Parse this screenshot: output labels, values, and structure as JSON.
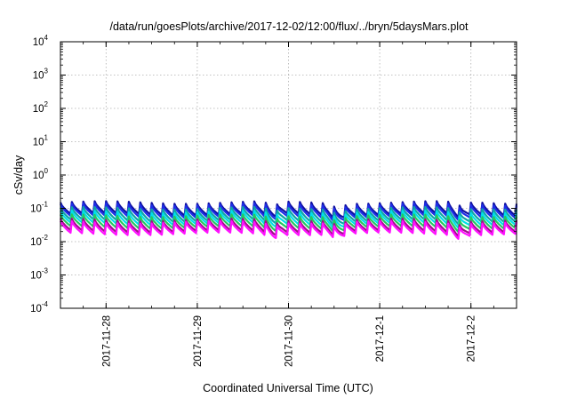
{
  "chart_data": {
    "type": "line",
    "title": "/data/run/goesPlots/archive/2017-12-02/12:00/flux/../bryn/5daysMars.plot",
    "xlabel": "Coordinated Universal Time (UTC)",
    "ylabel": "cSv/day",
    "y_scale": "log",
    "ylim": [
      0.0001,
      10000
    ],
    "y_ticks": [
      {
        "base": "10",
        "exp": "-4",
        "value": 0.0001
      },
      {
        "base": "10",
        "exp": "-3",
        "value": 0.001
      },
      {
        "base": "10",
        "exp": "-2",
        "value": 0.01
      },
      {
        "base": "10",
        "exp": "-1",
        "value": 0.1
      },
      {
        "base": "10",
        "exp": "0",
        "value": 1
      },
      {
        "base": "10",
        "exp": "1",
        "value": 10
      },
      {
        "base": "10",
        "exp": "2",
        "value": 100
      },
      {
        "base": "10",
        "exp": "3",
        "value": 1000
      },
      {
        "base": "10",
        "exp": "4",
        "value": 10000
      }
    ],
    "xlim": [
      "2017-11-27 12:00",
      "2017-12-02 12:00"
    ],
    "x_ticks": [
      "2017-11-28",
      "2017-11-29",
      "2017-11-30",
      "2017-12-1",
      "2017-12-2"
    ],
    "x_tick_dates": [
      "2017-11-28",
      "2017-11-29",
      "2017-11-30",
      "2017-12-01",
      "2017-12-02"
    ],
    "grid": true,
    "legend": "none",
    "sawtooth_period_hours": 3,
    "series": [
      {
        "color": "#1010a0",
        "peak": 0.15,
        "trough": 0.062
      },
      {
        "color": "#1e2ee8",
        "peak": 0.13,
        "trough": 0.052
      },
      {
        "color": "#0fa5a5",
        "peak": 0.1,
        "trough": 0.04
      },
      {
        "color": "#00e0e8",
        "peak": 0.078,
        "trough": 0.032
      },
      {
        "color": "#24c860",
        "peak": 0.06,
        "trough": 0.025
      },
      {
        "color": "#a0108a",
        "peak": 0.045,
        "trough": 0.019
      },
      {
        "color": "#ff10ff",
        "peak": 0.038,
        "trough": 0.016
      }
    ]
  }
}
